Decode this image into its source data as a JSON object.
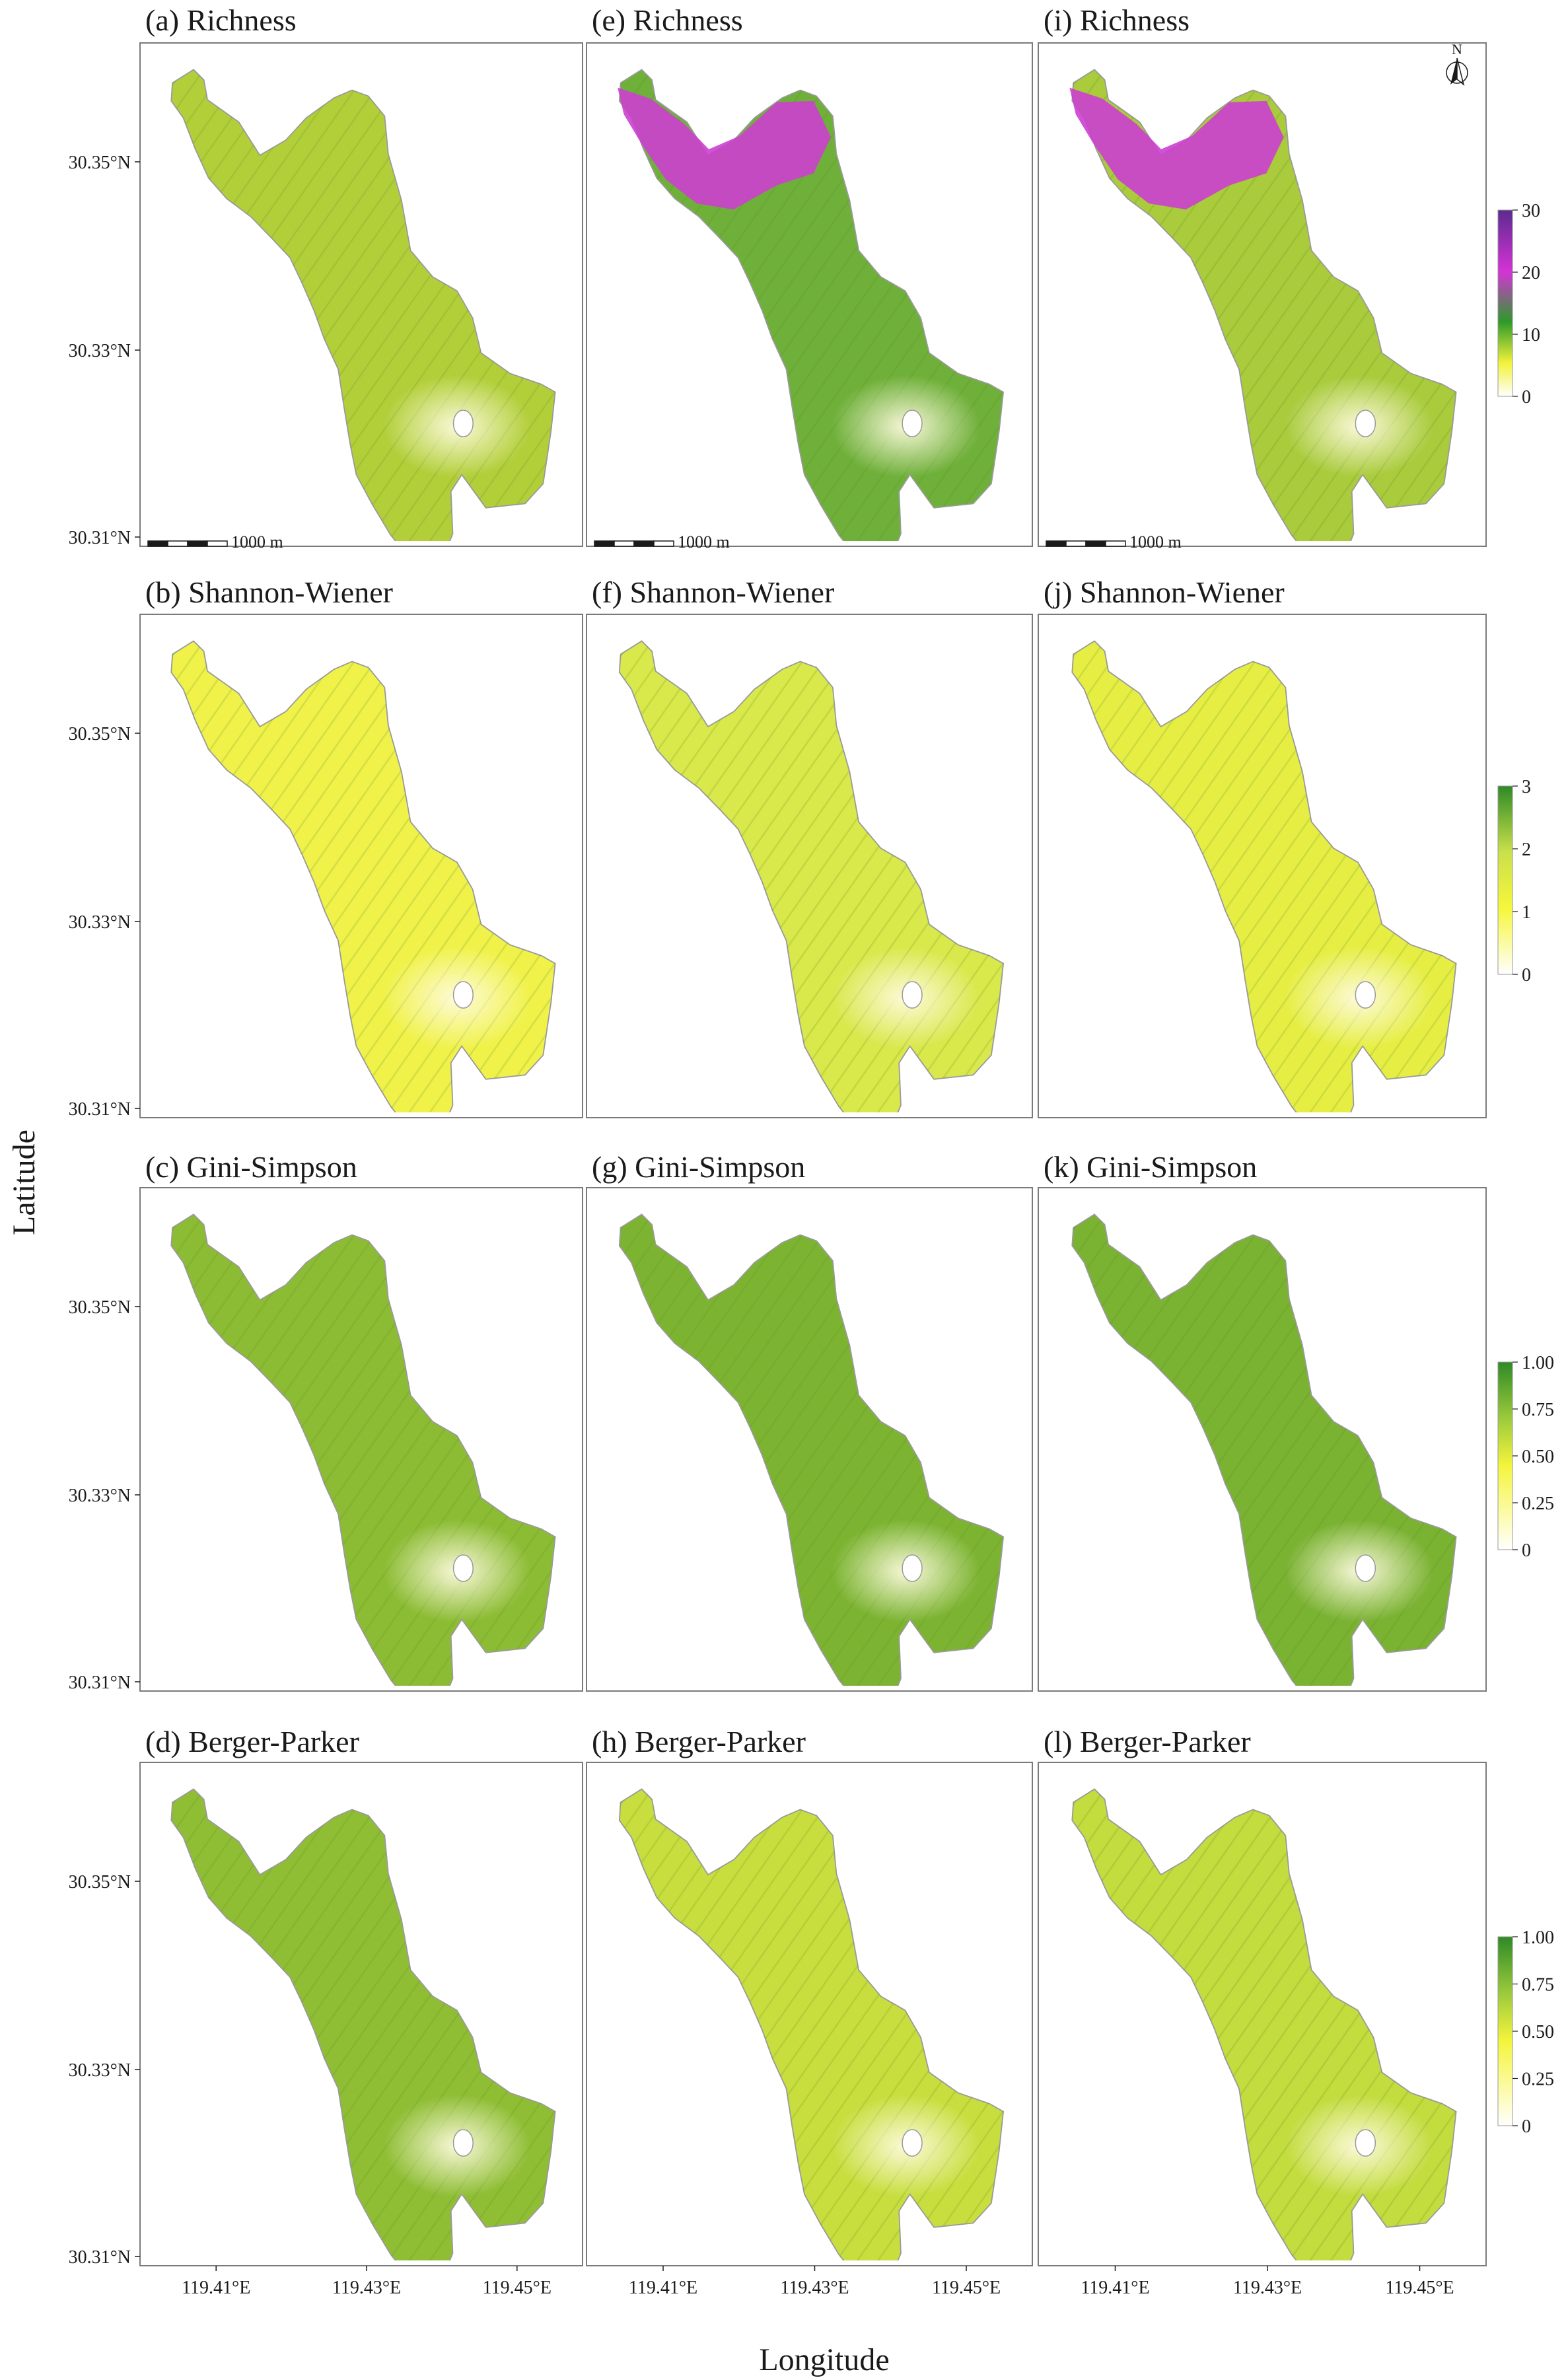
{
  "figure": {
    "ylabel": "Latitude",
    "xlabel": "Longitude",
    "lat_ticks": [
      "30.35°N",
      "30.33°N",
      "30.31°N"
    ],
    "lon_ticks": [
      "119.41°E",
      "119.43°E",
      "119.45°E"
    ],
    "scale_bar_label": "1000 m",
    "north_label": "N"
  },
  "rows": [
    {
      "index": "richness",
      "panels": [
        "(a) Richness",
        "(e) Richness",
        "(i) Richness"
      ],
      "legend": [
        "30",
        "20",
        "10",
        "0"
      ],
      "ramp": [
        "#5c2a8f",
        "#d433d6",
        "#2e9a2a",
        "#f2f23a",
        "#ffffff"
      ]
    },
    {
      "index": "shannon-wiener",
      "panels": [
        "(b) Shannon-Wiener",
        "(f) Shannon-Wiener",
        "(j) Shannon-Wiener"
      ],
      "legend": [
        "3",
        "2",
        "1",
        "0"
      ],
      "ramp": [
        "#2e8a26",
        "#c9e04a",
        "#f6f63c",
        "#ffffff"
      ]
    },
    {
      "index": "gini-simpson",
      "panels": [
        "(c) Gini-Simpson",
        "(g) Gini-Simpson",
        "(k) Gini-Simpson"
      ],
      "legend": [
        "1.00",
        "0.75",
        "0.50",
        "0.25",
        "0"
      ],
      "ramp": [
        "#2e8a26",
        "#9cca3c",
        "#f4f43c",
        "#fbfba6",
        "#ffffff"
      ]
    },
    {
      "index": "berger-parker",
      "panels": [
        "(d) Berger-Parker",
        "(h) Berger-Parker",
        "(l) Berger-Parker"
      ],
      "legend": [
        "1.00",
        "0.75",
        "0.50",
        "0.25",
        "0"
      ],
      "ramp": [
        "#2e8a26",
        "#9cca3c",
        "#f4f43c",
        "#fbfba6",
        "#ffffff"
      ]
    }
  ],
  "colors": {
    "richness_fill": [
      "#b2cf3a",
      "#6fb03a",
      "#a9cb3c"
    ],
    "richness_purple": "#cc3fd0",
    "shannon_fill": [
      "#f0f24a",
      "#d9e84a",
      "#e6ee44"
    ],
    "gini_fill": [
      "#8cbc34",
      "#7cb432",
      "#7ab232"
    ],
    "berger_fill": [
      "#8fbe35",
      "#c8de3e",
      "#c3dc3e"
    ],
    "outline": "#9a9a9a",
    "frame": "#7a7a7a"
  }
}
